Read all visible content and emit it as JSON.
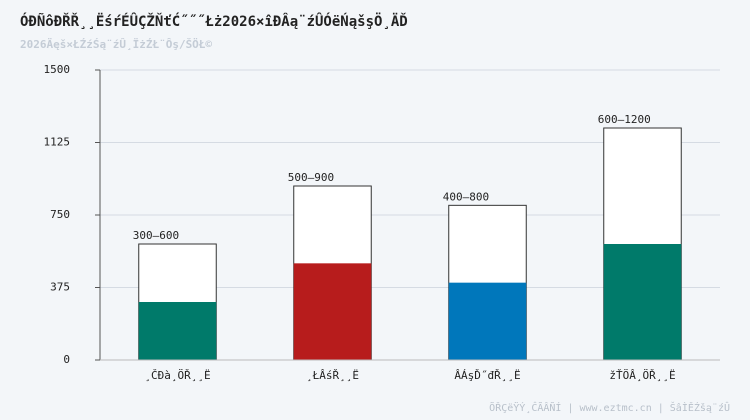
{
  "chart_data": {
    "type": "range-bar",
    "title": "ÓÐÑôÐŘŘ¸¸ËśŕÉÛÇŽŇťĆ˝˝˝Łż2026×îÐÂą¨źÛÓëŃąšşÖ¸ÄĎ",
    "subtitle": "2026Äęš×ŁŹźŚą¨źÛ¸ÏżŹŁ¨Ôş/ŠÖŁ©",
    "footer": "ÕŘÇëŸÝ¸ĈÃÂÑÍ | www.eztmc.cn | ŠâÌĚŹšą¨źÛ",
    "categories": [
      "¸ČÐà¸ÖŘ¸¸Ë",
      "¸ŁÂśŘ¸¸Ë",
      "ÂÁşĎ˝đŘ¸¸Ë",
      "žŤÖÂ¸ÖŘ¸¸Ë"
    ],
    "series": [
      {
        "values": [
          300,
          500,
          400,
          600
        ],
        "colors": [
          "#007a6a",
          "#b71c1c",
          "#0077bb",
          "#007a6a"
        ]
      },
      {
        "values": [
          600,
          900,
          800,
          1200
        ],
        "value_labels": [
          "300–600",
          "500–900",
          "400–800",
          "600–1200"
        ],
        "color": "#ffffff",
        "stroke": "#333333"
      }
    ],
    "ylim": [
      0,
      1500
    ],
    "yticks": [
      0,
      375,
      750,
      1125,
      1500
    ],
    "grid": true
  }
}
